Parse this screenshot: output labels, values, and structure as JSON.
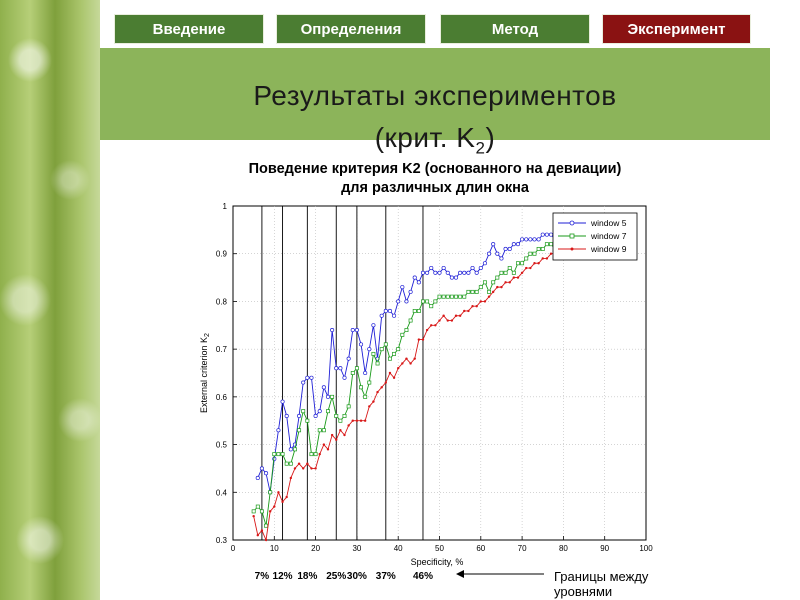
{
  "nav": {
    "items": [
      {
        "label": "Введение",
        "active": false
      },
      {
        "label": "Определения",
        "active": false
      },
      {
        "label": "Метод",
        "active": false
      },
      {
        "label": "Эксперимент",
        "active": true
      }
    ]
  },
  "slide": {
    "title_line1": "Результаты экспериментов",
    "title_line2_main": "(крит. K",
    "title_line2_sub": "2",
    "title_line2_end": ")"
  },
  "chart_title": {
    "line1": "Поведение критерия K2 (основанного на девиации)",
    "line2": "для различных длин окна"
  },
  "boundaries": {
    "labels": [
      "7%",
      "12%",
      "18%",
      "25%",
      "30%",
      "37%",
      "46%"
    ],
    "x": [
      7,
      12,
      18,
      25,
      30,
      37,
      46
    ],
    "caption_line1": "Границы между",
    "caption_line2": "уровнями"
  },
  "colors": {
    "window5": "#1f1fd6",
    "window7": "#1a9a1a",
    "window9": "#d81818",
    "nav_green": "#4b7d32",
    "nav_active": "#8a1212",
    "title_band": "#8cb45a",
    "boundary_labels": "#000000"
  },
  "chart_data": {
    "type": "line",
    "xlabel": "Specificity, %",
    "ylabel_main": "External criterion K",
    "ylabel_sub": "2",
    "xlim": [
      0,
      100
    ],
    "ylim": [
      0.3,
      1.0
    ],
    "xticks": [
      0,
      10,
      20,
      30,
      40,
      50,
      60,
      70,
      80,
      90,
      100
    ],
    "yticks": [
      0.3,
      0.4,
      0.5,
      0.6,
      0.7,
      0.8,
      0.9,
      1
    ],
    "legend_position": "top-right",
    "series": [
      {
        "name": "window 5",
        "x": [
          0,
          1,
          2,
          3,
          4,
          5,
          6,
          7,
          8,
          9,
          10,
          11,
          12,
          13,
          14,
          15,
          16,
          17,
          18,
          19,
          20,
          21,
          22,
          23,
          24,
          25,
          26,
          27,
          28,
          29,
          30,
          31,
          32,
          33,
          34,
          35,
          36,
          37,
          38,
          39,
          40,
          41,
          42,
          43,
          44,
          45,
          46,
          47,
          48,
          49,
          50,
          51,
          52,
          53,
          54,
          55,
          56,
          57,
          58,
          59,
          60,
          61,
          62,
          63,
          64,
          65,
          66,
          67,
          68,
          69,
          70,
          71,
          72,
          73,
          74,
          75,
          76,
          77,
          78
        ],
        "y": [
          null,
          null,
          null,
          null,
          null,
          null,
          0.43,
          0.45,
          0.44,
          0.4,
          0.47,
          0.53,
          0.59,
          0.56,
          0.49,
          0.5,
          0.56,
          0.63,
          0.64,
          0.64,
          0.56,
          0.57,
          0.62,
          0.6,
          0.74,
          0.66,
          0.66,
          0.64,
          0.68,
          0.74,
          0.74,
          0.71,
          0.65,
          0.7,
          0.75,
          0.68,
          0.77,
          0.78,
          0.78,
          0.77,
          0.8,
          0.83,
          0.8,
          0.82,
          0.85,
          0.84,
          0.86,
          0.86,
          0.87,
          0.86,
          0.86,
          0.87,
          0.86,
          0.85,
          0.85,
          0.86,
          0.86,
          0.86,
          0.87,
          0.86,
          0.87,
          0.88,
          0.9,
          0.92,
          0.9,
          0.89,
          0.91,
          0.91,
          0.92,
          0.92,
          0.93,
          0.93,
          0.93,
          0.93,
          0.93,
          0.94,
          0.94,
          0.94,
          0.93
        ]
      },
      {
        "name": "window 7",
        "x": [
          0,
          1,
          2,
          3,
          4,
          5,
          6,
          7,
          8,
          9,
          10,
          11,
          12,
          13,
          14,
          15,
          16,
          17,
          18,
          19,
          20,
          21,
          22,
          23,
          24,
          25,
          26,
          27,
          28,
          29,
          30,
          31,
          32,
          33,
          34,
          35,
          36,
          37,
          38,
          39,
          40,
          41,
          42,
          43,
          44,
          45,
          46,
          47,
          48,
          49,
          50,
          51,
          52,
          53,
          54,
          55,
          56,
          57,
          58,
          59,
          60,
          61,
          62,
          63,
          64,
          65,
          66,
          67,
          68,
          69,
          70,
          71,
          72,
          73,
          74,
          75,
          76,
          77,
          78
        ],
        "y": [
          null,
          null,
          null,
          null,
          null,
          0.36,
          0.37,
          0.36,
          0.33,
          0.4,
          0.48,
          0.48,
          0.48,
          0.46,
          0.46,
          0.49,
          0.53,
          0.57,
          0.55,
          0.48,
          0.48,
          0.53,
          0.53,
          0.57,
          0.6,
          0.56,
          0.55,
          0.56,
          0.58,
          0.65,
          0.66,
          0.62,
          0.6,
          0.63,
          0.69,
          0.67,
          0.7,
          0.71,
          0.68,
          0.69,
          0.7,
          0.73,
          0.74,
          0.76,
          0.78,
          0.78,
          0.8,
          0.8,
          0.79,
          0.8,
          0.81,
          0.81,
          0.81,
          0.81,
          0.81,
          0.81,
          0.81,
          0.82,
          0.82,
          0.82,
          0.83,
          0.84,
          0.82,
          0.84,
          0.85,
          0.86,
          0.86,
          0.87,
          0.86,
          0.88,
          0.88,
          0.89,
          0.9,
          0.9,
          0.91,
          0.91,
          0.92,
          0.92,
          0.91
        ]
      },
      {
        "name": "window 9",
        "x": [
          0,
          1,
          2,
          3,
          4,
          5,
          6,
          7,
          8,
          9,
          10,
          11,
          12,
          13,
          14,
          15,
          16,
          17,
          18,
          19,
          20,
          21,
          22,
          23,
          24,
          25,
          26,
          27,
          28,
          29,
          30,
          31,
          32,
          33,
          34,
          35,
          36,
          37,
          38,
          39,
          40,
          41,
          42,
          43,
          44,
          45,
          46,
          47,
          48,
          49,
          50,
          51,
          52,
          53,
          54,
          55,
          56,
          57,
          58,
          59,
          60,
          61,
          62,
          63,
          64,
          65,
          66,
          67,
          68,
          69,
          70,
          71,
          72,
          73,
          74,
          75,
          76,
          77,
          78
        ],
        "y": [
          null,
          null,
          null,
          null,
          null,
          0.35,
          0.31,
          0.32,
          0.3,
          0.36,
          0.37,
          0.4,
          0.38,
          0.39,
          0.43,
          0.45,
          0.46,
          0.45,
          0.46,
          0.45,
          0.45,
          0.48,
          0.5,
          0.49,
          0.52,
          0.51,
          0.53,
          0.52,
          0.54,
          0.55,
          0.55,
          0.55,
          0.55,
          0.58,
          0.59,
          0.61,
          0.62,
          0.63,
          0.65,
          0.64,
          0.66,
          0.67,
          0.68,
          0.67,
          0.68,
          0.72,
          0.72,
          0.74,
          0.75,
          0.75,
          0.76,
          0.77,
          0.76,
          0.76,
          0.77,
          0.77,
          0.78,
          0.78,
          0.79,
          0.79,
          0.8,
          0.8,
          0.81,
          0.82,
          0.83,
          0.83,
          0.84,
          0.84,
          0.85,
          0.85,
          0.86,
          0.87,
          0.87,
          0.88,
          0.88,
          0.89,
          0.89,
          0.9,
          0.9
        ]
      }
    ]
  }
}
